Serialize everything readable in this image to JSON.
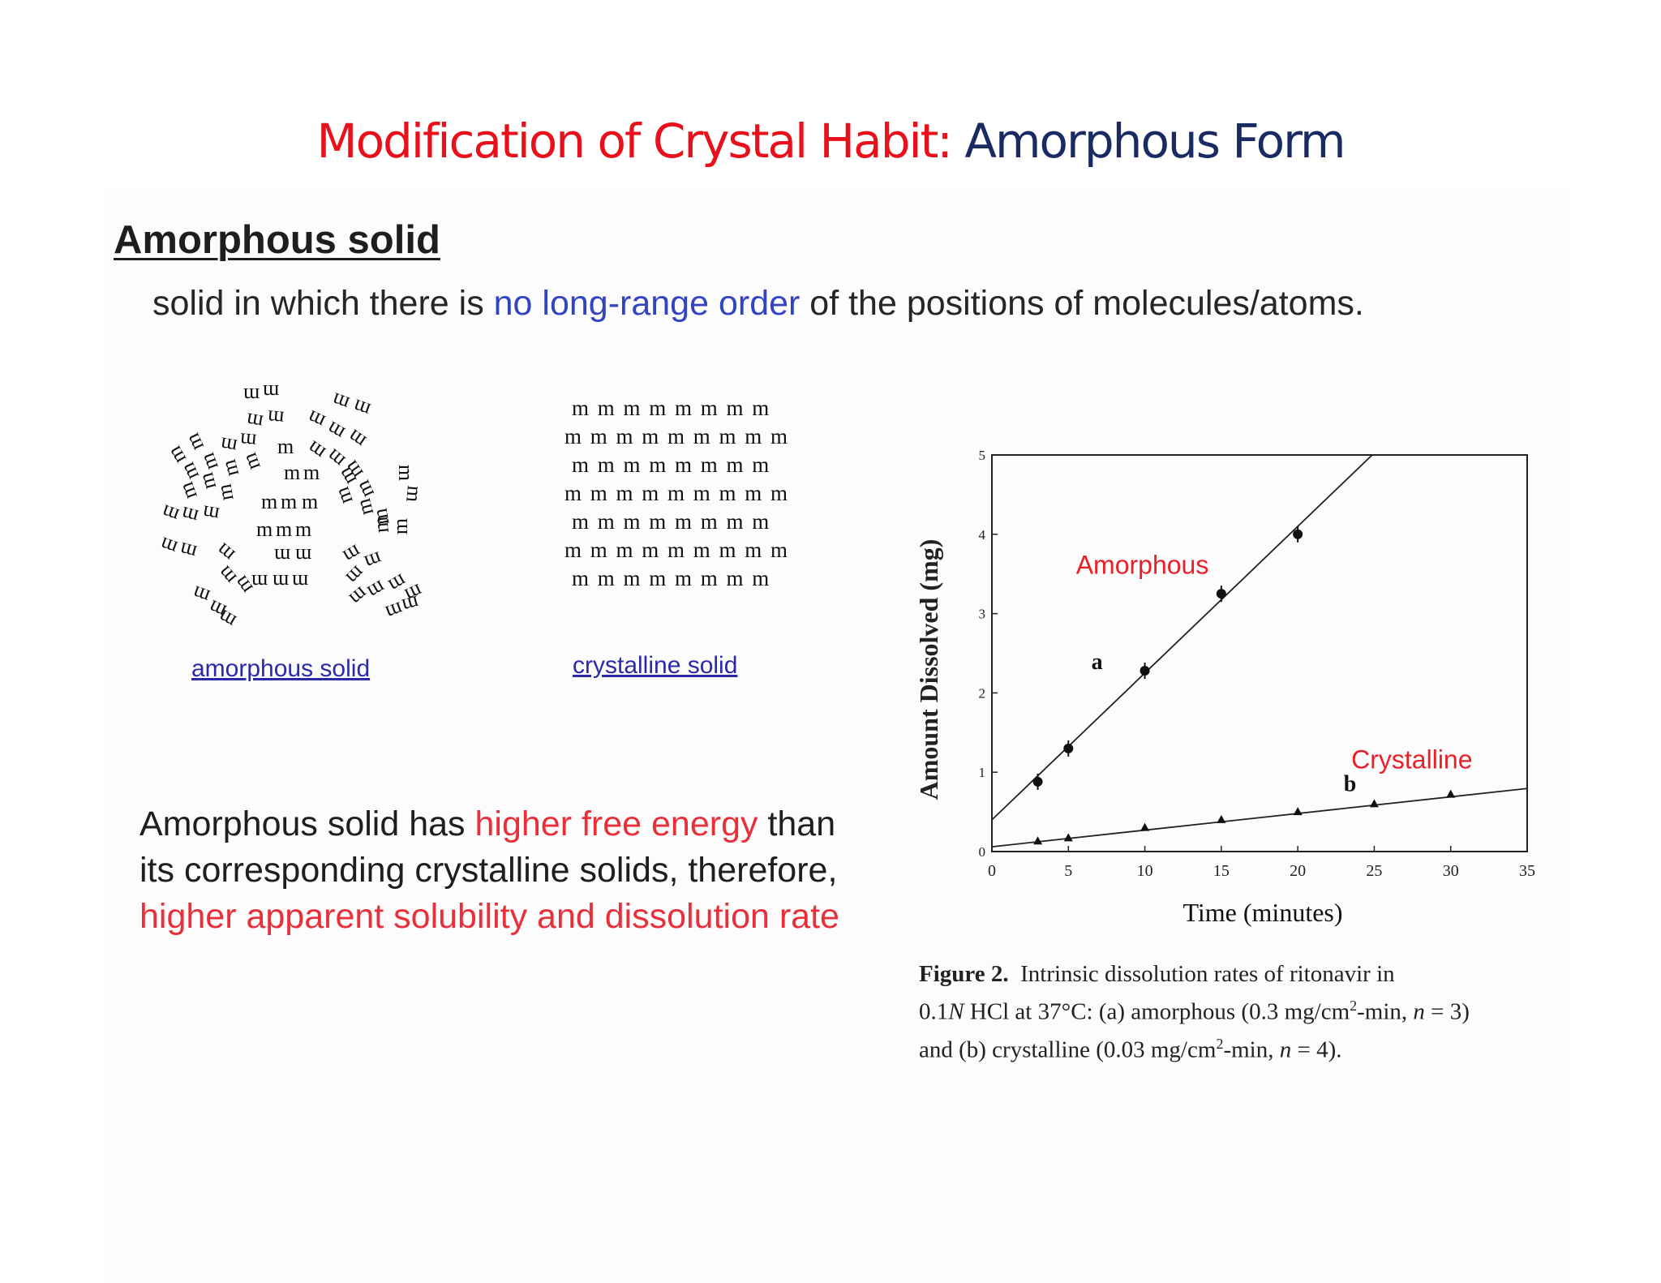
{
  "slide": {
    "title_red": "Modification of Crystal Habit:",
    "title_blue": "Amorphous Form",
    "heading": "Amorphous solid",
    "definition": {
      "before": "solid in which there is ",
      "highlight": "no long-range order",
      "after": " of the positions of molecules/atoms."
    },
    "amorphous_label": "amorphous solid",
    "crystalline_label": "crystalline solid",
    "molecule_glyph": "m",
    "crystalline_rows": [
      "m m m m m m m m",
      "m m m m m m m m m",
      "m m m m m m m m",
      "m m m m m m m m m",
      "m m m m m m m m",
      "m m m m m m m m m",
      "m m m m m m m m"
    ],
    "conclusion": {
      "part1": "Amorphous solid has ",
      "red1": "higher free energy",
      "part2": " than its corresponding crystalline solids, therefore, ",
      "red2": "higher apparent solubility and dissolution rate"
    },
    "figure_caption": {
      "label": "Figure 2.",
      "line1": "  Intrinsic dissolution rates of ritonavir in",
      "line2a": "0.1",
      "line2_italic": "N",
      "line2b": " HCl at 37°C: (a) amorphous (0.3 mg/cm",
      "sup": "2",
      "line2c": "-min, ",
      "line2_n": "n",
      "line2d": " = 3)",
      "line3a": "and (b) crystalline (0.03 mg/cm",
      "line3b": "-min, ",
      "line3_n": "n",
      "line3c": " = 4)."
    },
    "colors": {
      "title_red": "#e8101a",
      "title_blue": "#1a2b63",
      "highlight_blue": "#3344c0",
      "highlight_red": "#e8303a"
    }
  },
  "chart_data": {
    "type": "scatter",
    "xlabel": "Time (minutes)",
    "ylabel": "Amount Dissolved (mg)",
    "xlim": [
      0,
      35
    ],
    "ylim": [
      0,
      5
    ],
    "x_ticks": [
      0,
      5,
      10,
      15,
      20,
      25,
      30,
      35
    ],
    "y_ticks": [
      0,
      1,
      2,
      3,
      4,
      5
    ],
    "series": [
      {
        "name": "Amorphous",
        "marker_label": "a",
        "color": "#e8202a",
        "points": [
          {
            "x": 3,
            "y": 0.88
          },
          {
            "x": 5,
            "y": 1.3
          },
          {
            "x": 10,
            "y": 2.28
          },
          {
            "x": 15,
            "y": 3.25
          },
          {
            "x": 20,
            "y": 4.0
          }
        ],
        "fit": {
          "intercept": 0.4,
          "slope": 0.185
        }
      },
      {
        "name": "Crystalline",
        "marker_label": "b",
        "color": "#e8202a",
        "points": [
          {
            "x": 3,
            "y": 0.13
          },
          {
            "x": 5,
            "y": 0.17
          },
          {
            "x": 10,
            "y": 0.3
          },
          {
            "x": 15,
            "y": 0.4
          },
          {
            "x": 20,
            "y": 0.5
          },
          {
            "x": 25,
            "y": 0.6
          },
          {
            "x": 30,
            "y": 0.72
          }
        ],
        "fit": {
          "intercept": 0.06,
          "slope": 0.021
        }
      }
    ]
  }
}
